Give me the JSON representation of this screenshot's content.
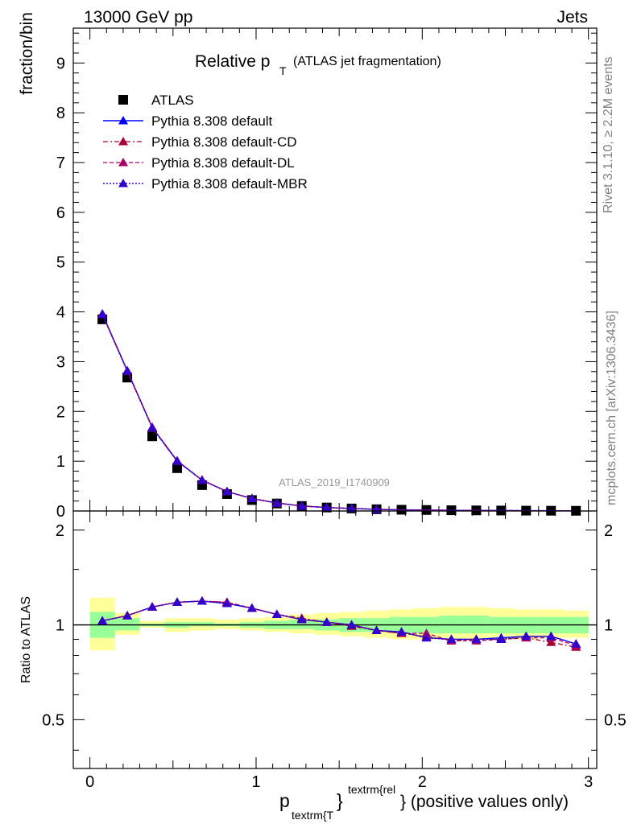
{
  "header": {
    "left": "13000 GeV pp",
    "right": "Jets"
  },
  "side": {
    "rivet": "Rivet 3.1.10, ≥ 2.2M events",
    "mcplots": "mcplots.cern.ch [arXiv:1306.3436]"
  },
  "watermark": "ATLAS_2019_I1740909",
  "title": {
    "main": "Relative p",
    "sub": "T",
    "suffix": "(ATLAS jet fragmentation)"
  },
  "colors": {
    "atlas": "#000000",
    "default": "#0000ff",
    "cd": "#aa0033",
    "dl": "#aa0066",
    "mbr": "#3300cc",
    "band_inner": "#99ff99",
    "band_outer": "#ffff99"
  },
  "chart_data": [
    {
      "type": "scatter",
      "ylabel": "fraction/bin",
      "xlim": [
        -0.1,
        3.05
      ],
      "ylim": [
        0,
        9.7
      ],
      "yticks": [
        0,
        1,
        2,
        3,
        4,
        5,
        6,
        7,
        8,
        9
      ],
      "x": [
        0.075,
        0.225,
        0.375,
        0.525,
        0.675,
        0.825,
        0.975,
        1.125,
        1.275,
        1.425,
        1.575,
        1.725,
        1.875,
        2.025,
        2.175,
        2.325,
        2.475,
        2.625,
        2.775,
        2.925
      ],
      "series": [
        {
          "name": "ATLAS",
          "style": "data",
          "values": [
            3.85,
            2.68,
            1.5,
            0.86,
            0.52,
            0.34,
            0.22,
            0.15,
            0.1,
            0.07,
            0.05,
            0.035,
            0.025,
            0.02,
            0.015,
            0.012,
            0.009,
            0.007,
            0.005,
            0.004
          ]
        },
        {
          "name": "Pythia 8.308 default",
          "style": "solid",
          "values": [
            3.96,
            2.82,
            1.68,
            1.01,
            0.62,
            0.39,
            0.25,
            0.16,
            0.1,
            0.07,
            0.05,
            0.033,
            0.023,
            0.018,
            0.013,
            0.011,
            0.008,
            0.006,
            0.005,
            0.003
          ]
        },
        {
          "name": "Pythia 8.308 default-CD",
          "style": "dashdot",
          "values": [
            3.95,
            2.81,
            1.67,
            1.0,
            0.62,
            0.39,
            0.25,
            0.16,
            0.1,
            0.07,
            0.05,
            0.033,
            0.023,
            0.018,
            0.013,
            0.011,
            0.008,
            0.006,
            0.004,
            0.003
          ]
        },
        {
          "name": "Pythia 8.308 default-DL",
          "style": "dashed",
          "values": [
            3.95,
            2.81,
            1.68,
            1.0,
            0.62,
            0.39,
            0.25,
            0.16,
            0.1,
            0.07,
            0.05,
            0.033,
            0.023,
            0.018,
            0.013,
            0.011,
            0.008,
            0.006,
            0.005,
            0.003
          ]
        },
        {
          "name": "Pythia 8.308 default-MBR",
          "style": "dotted",
          "values": [
            3.95,
            2.81,
            1.67,
            1.0,
            0.62,
            0.39,
            0.25,
            0.16,
            0.1,
            0.07,
            0.05,
            0.033,
            0.023,
            0.018,
            0.013,
            0.011,
            0.008,
            0.006,
            0.005,
            0.003
          ]
        }
      ]
    },
    {
      "type": "scatter",
      "ylabel": "Ratio to ATLAS",
      "xlabel_main": "p",
      "xlabel_sub": "textrm{T",
      "xlabel_sup": "textrm{rel",
      "xlabel_tail": "} (positive values only)",
      "xlim": [
        -0.1,
        3.05
      ],
      "ylim": [
        0.35,
        2.3
      ],
      "scale": "log",
      "yticks": [
        0.5,
        1,
        2
      ],
      "yticklabels": [
        "0.5",
        "1",
        "2"
      ],
      "xticks": [
        0,
        1,
        2,
        3
      ],
      "xticklabels": [
        "0",
        "1",
        "2",
        "3"
      ],
      "reference": 1,
      "band_inner": [
        [
          0.91,
          1.1
        ],
        [
          0.96,
          1.05
        ],
        [
          0.99,
          1.01
        ],
        [
          0.98,
          1.02
        ],
        [
          0.99,
          1.02
        ],
        [
          0.99,
          1.01
        ],
        [
          0.98,
          1.02
        ],
        [
          0.97,
          1.03
        ],
        [
          0.97,
          1.04
        ],
        [
          0.96,
          1.04
        ],
        [
          0.95,
          1.05
        ],
        [
          0.95,
          1.05
        ],
        [
          0.94,
          1.06
        ],
        [
          0.94,
          1.06
        ],
        [
          0.94,
          1.07
        ],
        [
          0.94,
          1.07
        ],
        [
          0.94,
          1.06
        ],
        [
          0.94,
          1.06
        ],
        [
          0.94,
          1.06
        ],
        [
          0.94,
          1.06
        ]
      ],
      "band_outer": [
        [
          0.83,
          1.22
        ],
        [
          0.93,
          1.09
        ],
        [
          0.98,
          1.03
        ],
        [
          0.95,
          1.05
        ],
        [
          0.96,
          1.05
        ],
        [
          0.97,
          1.04
        ],
        [
          0.96,
          1.05
        ],
        [
          0.95,
          1.06
        ],
        [
          0.94,
          1.08
        ],
        [
          0.93,
          1.09
        ],
        [
          0.92,
          1.1
        ],
        [
          0.91,
          1.11
        ],
        [
          0.9,
          1.12
        ],
        [
          0.9,
          1.13
        ],
        [
          0.9,
          1.14
        ],
        [
          0.9,
          1.14
        ],
        [
          0.9,
          1.13
        ],
        [
          0.9,
          1.12
        ],
        [
          0.91,
          1.12
        ],
        [
          0.91,
          1.11
        ]
      ],
      "x": [
        0.075,
        0.225,
        0.375,
        0.525,
        0.675,
        0.825,
        0.975,
        1.125,
        1.275,
        1.425,
        1.575,
        1.725,
        1.875,
        2.025,
        2.175,
        2.325,
        2.475,
        2.625,
        2.775,
        2.925
      ],
      "series": [
        {
          "name": "Pythia 8.308 default",
          "style": "solid",
          "values": [
            1.03,
            1.07,
            1.14,
            1.18,
            1.19,
            1.17,
            1.13,
            1.08,
            1.04,
            1.02,
            1.0,
            0.96,
            0.95,
            0.91,
            0.9,
            0.9,
            0.91,
            0.92,
            0.92,
            0.87
          ]
        },
        {
          "name": "Pythia 8.308 default-CD",
          "style": "dashdot",
          "values": [
            1.03,
            1.07,
            1.14,
            1.18,
            1.19,
            1.18,
            1.13,
            1.08,
            1.05,
            1.02,
            0.99,
            0.96,
            0.94,
            0.92,
            0.89,
            0.9,
            0.9,
            0.91,
            0.88,
            0.85
          ]
        },
        {
          "name": "Pythia 8.308 default-DL",
          "style": "dashed",
          "values": [
            1.03,
            1.07,
            1.14,
            1.18,
            1.19,
            1.18,
            1.13,
            1.08,
            1.04,
            1.02,
            1.0,
            0.96,
            0.94,
            0.94,
            0.89,
            0.89,
            0.9,
            0.91,
            0.91,
            0.86
          ]
        },
        {
          "name": "Pythia 8.308 default-MBR",
          "style": "dotted",
          "values": [
            1.03,
            1.07,
            1.14,
            1.18,
            1.19,
            1.17,
            1.13,
            1.08,
            1.04,
            1.02,
            1.0,
            0.96,
            0.95,
            0.91,
            0.9,
            0.9,
            0.9,
            0.92,
            0.92,
            0.87
          ]
        }
      ]
    }
  ]
}
